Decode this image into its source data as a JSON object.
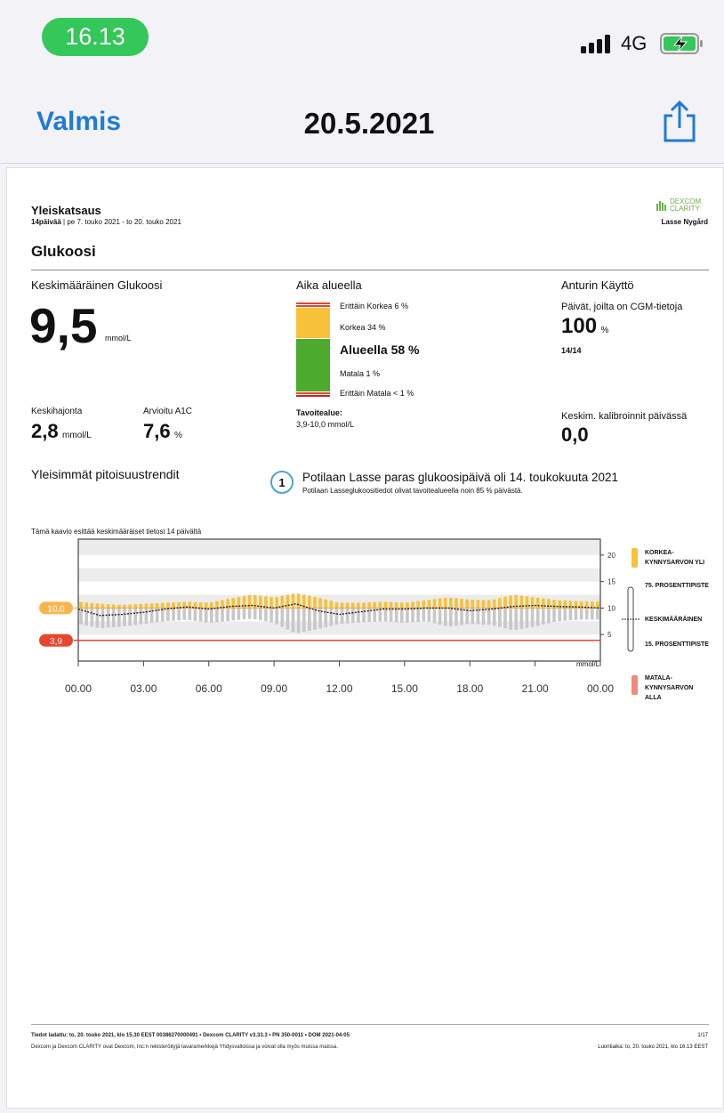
{
  "status_bar": {
    "time": "16.13",
    "network": "4G"
  },
  "nav": {
    "done_label": "Valmis",
    "title": "20.5.2021",
    "share_icon": "share-icon"
  },
  "report": {
    "header": {
      "title": "Yleiskatsaus",
      "days": "14päivää",
      "range": "| pe 7. touko 2021 - to 20. touko 2021",
      "brand": "DEXCOM CLARITY",
      "patient": "Lasse Nygård"
    },
    "section_title": "Glukoosi",
    "avg": {
      "label": "Keskimääräinen Glukoosi",
      "value": "9,5",
      "unit": "mmol/L"
    },
    "sd": {
      "label": "Keskihajonta",
      "value": "2,8",
      "unit": "mmol/L"
    },
    "a1c": {
      "label": "Arvioitu A1C",
      "value": "7,6",
      "unit": "%"
    },
    "time_in_range": {
      "title": "Aika alueella",
      "very_high": "Erittäin Korkea 6 %",
      "high": "Korkea 34 %",
      "in_range": "Alueella 58 %",
      "low": "Matala 1 %",
      "very_low": "Erittäin Matala < 1 %",
      "target_label": "Tavoitealue:",
      "target_value": "3,9-10,0 mmol/L",
      "percentages": {
        "very_high": 6,
        "high": 34,
        "in_range": 58,
        "low": 1,
        "very_low": 1
      }
    },
    "sensor": {
      "title": "Anturin Käyttö",
      "label": "Päivät, joilta on CGM-tietoja",
      "value": "100",
      "unit": "%",
      "days": "14/14",
      "calib_label": "Keskim. kalibroinnit päivässä",
      "calib_value": "0,0"
    },
    "trends_title": "Yleisimmät pitoisuustrendit",
    "best_day": {
      "number": "1",
      "headline": "Potilaan Lasse paras glukoosipäivä oli 14. toukokuuta 2021",
      "sub": "Potilaan Lasseglukoositiedot olivat tavoitealueella noin 85 % päivästä."
    },
    "chart_caption": "Tämä kaavio esittää keskimääräiset tietosi 14 päivältä",
    "legend": {
      "high": "KORKEA-KYNNYSARVON YLI",
      "p75": "75. PROSENTTIPISTE",
      "mean": "KESKIMÄÄRÄINEN",
      "p15": "15. PROSENTTIPISTE",
      "low": "MATALA-KYNNYSARVON ALLA"
    },
    "footer": {
      "line1": "Tiedot ladattu: to, 20. touko 2021, klo 15.30 EEST     00386270000491  •  Dexcom CLARITY v3.33.3  •  PN 350-0011  •  DOM 2021-04-05",
      "line2": "Dexcom ja Dexcom CLARITY ovat Dexcom, Inc:n rekisteröityjä tavaramerkkejä Yhdysvalloissa ja voivat olla myös muissa maissa.",
      "page": "1/17",
      "created": "Luontiaika: to, 20. touko 2021, klo 16.13 EEST"
    }
  },
  "colors": {
    "accent": "#1f7ad8",
    "high": "#f7c23a",
    "in_range": "#4caa2c",
    "very_high": "#e8452d",
    "low_line": "#e8452d",
    "target_pill": "#f7b64d"
  },
  "chart_data": {
    "type": "line",
    "x_ticks": [
      "00.00",
      "03.00",
      "06.00",
      "09.00",
      "12.00",
      "15.00",
      "18.00",
      "21.00",
      "00.00"
    ],
    "y_ticks": [
      "20",
      "15",
      "10",
      "5"
    ],
    "ylabel": "mmol/L",
    "ylim": [
      0,
      23
    ],
    "target_high": 10,
    "target_low": 3.9,
    "target_high_label": "10,0",
    "target_low_label": "3,9",
    "hours": [
      0,
      1,
      2,
      3,
      4,
      5,
      6,
      7,
      8,
      9,
      10,
      11,
      12,
      13,
      14,
      15,
      16,
      17,
      18,
      19,
      20,
      21,
      22,
      23,
      24
    ],
    "series": [
      {
        "name": "75. PROSENTTIPISTE",
        "values": [
          11.2,
          10.8,
          10.6,
          10.8,
          11.0,
          11.2,
          11.0,
          11.8,
          12.5,
          12.0,
          12.8,
          12.0,
          11.0,
          11.0,
          11.2,
          11.0,
          11.5,
          12.0,
          11.6,
          11.5,
          12.5,
          12.0,
          11.5,
          11.3,
          11.2
        ]
      },
      {
        "name": "KESKIMÄÄRÄINEN",
        "values": [
          9.8,
          8.6,
          8.8,
          9.2,
          9.8,
          10.2,
          9.8,
          10.3,
          10.5,
          10.0,
          10.8,
          9.5,
          8.8,
          9.3,
          9.8,
          9.8,
          10.0,
          10.0,
          9.5,
          9.8,
          10.3,
          10.5,
          10.3,
          10.2,
          10.0
        ]
      },
      {
        "name": "15. PROSENTTIPISTE",
        "values": [
          7.0,
          6.2,
          6.5,
          7.0,
          7.5,
          7.8,
          7.2,
          7.6,
          8.0,
          7.2,
          5.2,
          6.0,
          7.0,
          7.3,
          7.5,
          7.2,
          7.5,
          6.5,
          7.0,
          6.8,
          5.8,
          6.5,
          7.5,
          7.8,
          7.8
        ]
      }
    ]
  }
}
